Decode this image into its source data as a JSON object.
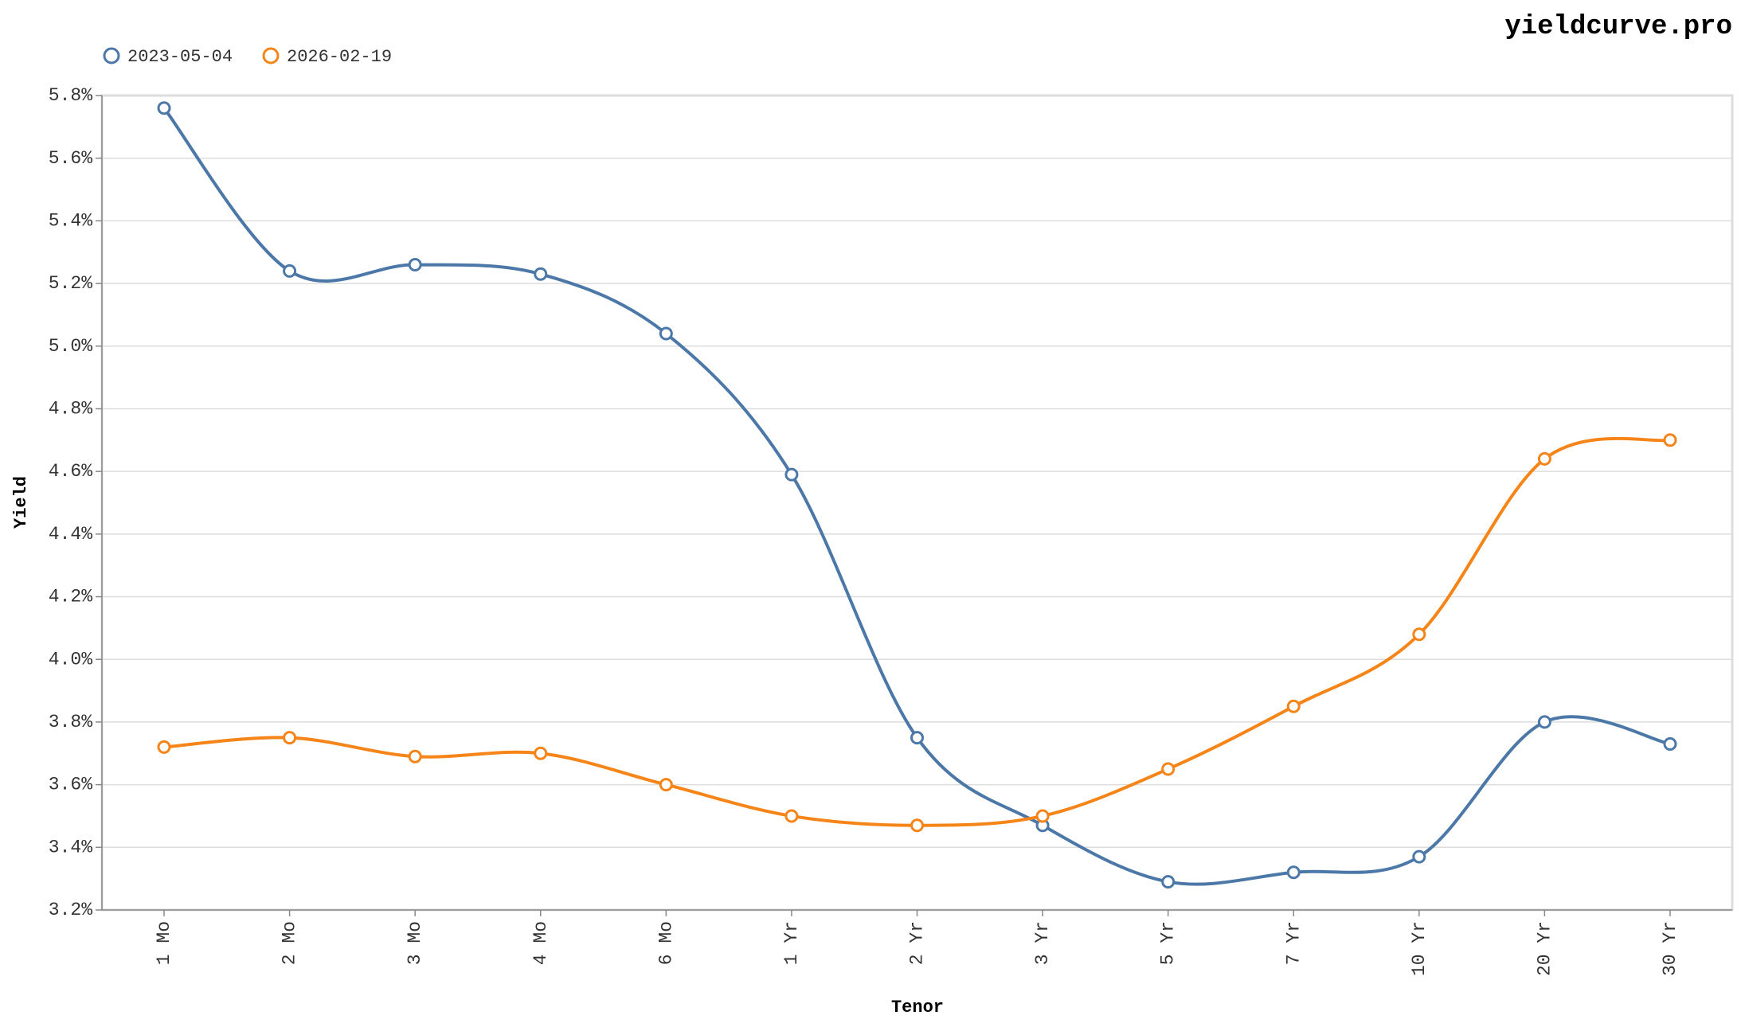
{
  "chart_data": {
    "type": "line",
    "title": "yieldcurve.pro",
    "x_label": "Tenor",
    "y_label": "Yield",
    "categories": [
      "1 Mo",
      "2 Mo",
      "3 Mo",
      "4 Mo",
      "6 Mo",
      "1 Yr",
      "2 Yr",
      "3 Yr",
      "5 Yr",
      "7 Yr",
      "10 Yr",
      "20 Yr",
      "30 Yr"
    ],
    "series": [
      {
        "name": "2023-05-04",
        "color": "#4c78a8",
        "values": [
          5.76,
          5.24,
          5.26,
          5.23,
          5.04,
          4.59,
          3.75,
          3.47,
          3.29,
          3.32,
          3.37,
          3.8,
          3.73
        ]
      },
      {
        "name": "2026-02-19",
        "color": "#f58518",
        "values": [
          3.72,
          3.75,
          3.69,
          3.7,
          3.6,
          3.5,
          3.47,
          3.5,
          3.65,
          3.85,
          4.08,
          4.64,
          4.7
        ]
      }
    ],
    "ylim": [
      3.2,
      5.8
    ],
    "yticks": [
      {
        "value": 3.2,
        "label": "3.2%"
      },
      {
        "value": 3.4,
        "label": "3.4%"
      },
      {
        "value": 3.6,
        "label": "3.6%"
      },
      {
        "value": 3.8,
        "label": "3.8%"
      },
      {
        "value": 4.0,
        "label": "4.0%"
      },
      {
        "value": 4.2,
        "label": "4.2%"
      },
      {
        "value": 4.4,
        "label": "4.4%"
      },
      {
        "value": 4.6,
        "label": "4.6%"
      },
      {
        "value": 4.8,
        "label": "4.8%"
      },
      {
        "value": 5.0,
        "label": "5.0%"
      },
      {
        "value": 5.2,
        "label": "5.2%"
      },
      {
        "value": 5.4,
        "label": "5.4%"
      },
      {
        "value": 5.6,
        "label": "5.6%"
      },
      {
        "value": 5.8,
        "label": "5.8%"
      }
    ],
    "grid": true,
    "legend": "top-left"
  }
}
